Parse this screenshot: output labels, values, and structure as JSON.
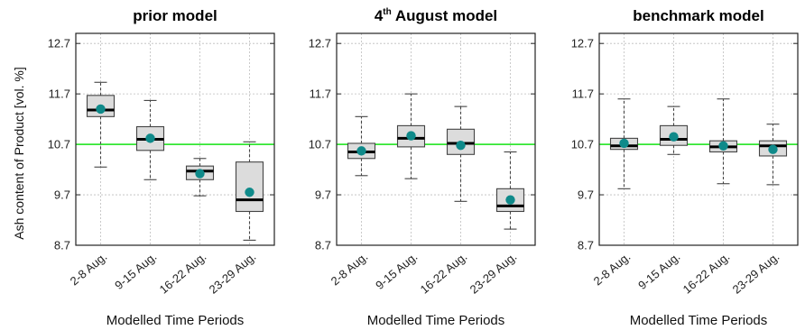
{
  "chart_data": {
    "type": "box",
    "ylabel": "Ash content of Product [vol. %]",
    "ylim": [
      8.7,
      12.9
    ],
    "yticks": [
      8.7,
      9.7,
      10.7,
      11.7,
      12.7
    ],
    "ytick_labels": [
      "8.7",
      "9.7",
      "10.7",
      "11.7",
      "12.7"
    ],
    "categories": [
      "2-8 Aug.",
      "9-15 Aug.",
      "16-22 Aug.",
      "23-29 Aug."
    ],
    "xlabel": "Modelled Time Periods",
    "reference_line": {
      "value": 10.7,
      "color": "#33e633"
    },
    "colors": {
      "box_fill": "#dcdcdc",
      "box_edge": "#444444",
      "median": "#000000",
      "mean_marker": "#0f8a8a",
      "grid": "#bdbdbd"
    },
    "grid": true,
    "panels": [
      {
        "title": "prior model",
        "title_sup": "",
        "title_rest": "",
        "boxes": [
          {
            "category": "2-8 Aug.",
            "whisker_low": 10.25,
            "q1": 11.25,
            "median": 11.38,
            "q3": 11.67,
            "whisker_high": 11.93,
            "mean": 11.4
          },
          {
            "category": "9-15 Aug.",
            "whisker_low": 10.0,
            "q1": 10.58,
            "median": 10.8,
            "q3": 11.05,
            "whisker_high": 11.57,
            "mean": 10.82
          },
          {
            "category": "16-22 Aug.",
            "whisker_low": 9.68,
            "q1": 10.0,
            "median": 10.17,
            "q3": 10.27,
            "whisker_high": 10.42,
            "mean": 10.12
          },
          {
            "category": "23-29 Aug.",
            "whisker_low": 8.8,
            "q1": 9.37,
            "median": 9.6,
            "q3": 10.35,
            "whisker_high": 10.75,
            "mean": 9.75
          }
        ]
      },
      {
        "title": "4",
        "title_sup": "th",
        "title_rest": " August model",
        "boxes": [
          {
            "category": "2-8 Aug.",
            "whisker_low": 10.08,
            "q1": 10.42,
            "median": 10.55,
            "q3": 10.72,
            "whisker_high": 11.25,
            "mean": 10.57
          },
          {
            "category": "9-15 Aug.",
            "whisker_low": 10.02,
            "q1": 10.65,
            "median": 10.82,
            "q3": 11.07,
            "whisker_high": 11.7,
            "mean": 10.87
          },
          {
            "category": "16-22 Aug.",
            "whisker_low": 9.57,
            "q1": 10.5,
            "median": 10.72,
            "q3": 11.0,
            "whisker_high": 11.45,
            "mean": 10.68
          },
          {
            "category": "23-29 Aug.",
            "whisker_low": 9.02,
            "q1": 9.37,
            "median": 9.48,
            "q3": 9.82,
            "whisker_high": 10.55,
            "mean": 9.6
          }
        ]
      },
      {
        "title": "benchmark model",
        "title_sup": "",
        "title_rest": "",
        "boxes": [
          {
            "category": "2-8 Aug.",
            "whisker_low": 9.82,
            "q1": 10.6,
            "median": 10.67,
            "q3": 10.82,
            "whisker_high": 11.6,
            "mean": 10.72
          },
          {
            "category": "9-15 Aug.",
            "whisker_low": 10.5,
            "q1": 10.68,
            "median": 10.8,
            "q3": 11.07,
            "whisker_high": 11.45,
            "mean": 10.85
          },
          {
            "category": "16-22 Aug.",
            "whisker_low": 9.92,
            "q1": 10.55,
            "median": 10.65,
            "q3": 10.77,
            "whisker_high": 11.6,
            "mean": 10.67
          },
          {
            "category": "23-29 Aug.",
            "whisker_low": 9.9,
            "q1": 10.47,
            "median": 10.67,
            "q3": 10.77,
            "whisker_high": 11.1,
            "mean": 10.6
          }
        ]
      }
    ]
  }
}
